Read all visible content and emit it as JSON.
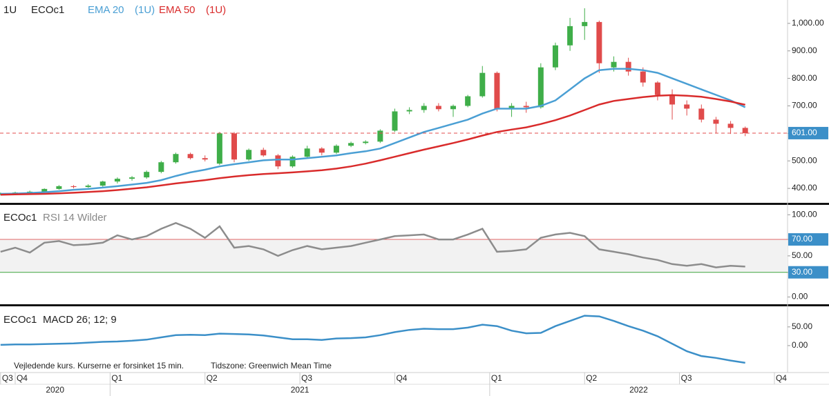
{
  "chart_data": [
    {
      "type": "candlestick",
      "title": "1U",
      "symbol": "ECOc1",
      "x": [
        -2,
        0,
        2,
        4,
        6,
        8,
        10,
        12,
        14,
        16,
        18,
        20,
        22,
        24,
        26,
        28,
        30,
        32,
        34,
        36,
        38,
        40,
        42,
        44,
        46,
        48,
        50,
        52,
        54,
        56,
        58,
        60,
        62,
        64,
        66,
        68,
        70,
        72,
        74,
        76,
        78,
        80,
        82,
        84,
        86,
        88,
        90,
        92,
        94,
        96,
        98,
        100
      ],
      "open": [
        378,
        382,
        385,
        388,
        398,
        408,
        405,
        410,
        425,
        435,
        440,
        460,
        495,
        525,
        510,
        490,
        600,
        505,
        540,
        520,
        480,
        515,
        545,
        530,
        555,
        565,
        570,
        610,
        680,
        685,
        700,
        688,
        700,
        735,
        820,
        690,
        700,
        695,
        840,
        920,
        990,
        1005,
        840,
        860,
        825,
        785,
        740,
        705,
        690,
        650,
        635,
        620
      ],
      "high": [
        385,
        388,
        392,
        400,
        412,
        412,
        415,
        428,
        440,
        445,
        465,
        500,
        530,
        530,
        520,
        605,
        605,
        545,
        548,
        525,
        520,
        555,
        550,
        560,
        570,
        575,
        615,
        690,
        695,
        710,
        710,
        705,
        740,
        845,
        825,
        710,
        715,
        855,
        930,
        1020,
        1055,
        1010,
        880,
        875,
        840,
        790,
        760,
        720,
        705,
        660,
        645,
        625
      ],
      "low": [
        375,
        378,
        380,
        385,
        395,
        400,
        402,
        406,
        418,
        428,
        435,
        455,
        490,
        505,
        498,
        485,
        495,
        500,
        515,
        470,
        475,
        510,
        520,
        525,
        550,
        560,
        565,
        605,
        670,
        675,
        680,
        660,
        695,
        730,
        680,
        660,
        675,
        690,
        830,
        900,
        940,
        820,
        825,
        810,
        770,
        720,
        650,
        665,
        640,
        600,
        598,
        590
      ],
      "close": [
        382,
        385,
        388,
        398,
        408,
        405,
        410,
        425,
        435,
        440,
        460,
        495,
        525,
        510,
        505,
        600,
        505,
        540,
        520,
        480,
        515,
        545,
        530,
        555,
        565,
        570,
        610,
        680,
        685,
        700,
        688,
        700,
        735,
        820,
        690,
        700,
        695,
        840,
        920,
        990,
        1005,
        855,
        860,
        825,
        785,
        740,
        705,
        690,
        650,
        635,
        620,
        601
      ],
      "up_color": "#3fae49",
      "down_color": "#e04b4b",
      "series": [
        {
          "name": "EMA 20",
          "period_label": "(1U)",
          "color": "#4a9fd4",
          "values": [
            380,
            381,
            383,
            386,
            390,
            395,
            398,
            403,
            408,
            414,
            420,
            430,
            445,
            458,
            468,
            480,
            488,
            495,
            502,
            505,
            505,
            510,
            515,
            520,
            528,
            535,
            545,
            565,
            585,
            605,
            620,
            635,
            650,
            672,
            690,
            690,
            690,
            700,
            720,
            760,
            800,
            830,
            835,
            835,
            830,
            820,
            800,
            780,
            760,
            740,
            720,
            695
          ]
        },
        {
          "name": "EMA 50",
          "period_label": "(1U)",
          "color": "#d92b2b",
          "values": [
            377,
            378,
            379,
            380,
            382,
            384,
            387,
            390,
            394,
            399,
            404,
            411,
            418,
            424,
            430,
            437,
            443,
            448,
            452,
            455,
            458,
            462,
            466,
            472,
            480,
            490,
            502,
            515,
            528,
            541,
            553,
            565,
            578,
            592,
            605,
            614,
            622,
            634,
            648,
            665,
            685,
            705,
            718,
            725,
            732,
            737,
            739,
            737,
            733,
            725,
            716,
            704
          ]
        }
      ],
      "ylim": [
        350,
        1085
      ],
      "yticks": [
        {
          "value": 400,
          "label": "400.00"
        },
        {
          "value": 500,
          "label": "500.00"
        },
        {
          "value": 600,
          "label": "600.00"
        },
        {
          "value": 700,
          "label": "700.00"
        },
        {
          "value": 800,
          "label": "800.00"
        },
        {
          "value": 900,
          "label": "900.00"
        },
        {
          "value": 1000,
          "label": "1,000.00"
        }
      ],
      "last_price": {
        "value": 601,
        "label": "601.00"
      },
      "xlim": [
        -2.08,
        105.8
      ],
      "xticks": [
        {
          "value": -2,
          "label": "Q3"
        },
        {
          "value": 0,
          "label": "Q4"
        },
        {
          "value": 13,
          "label": "Q1"
        },
        {
          "value": 26,
          "label": "Q2"
        },
        {
          "value": 39,
          "label": "Q3"
        },
        {
          "value": 52,
          "label": "Q4"
        },
        {
          "value": 65,
          "label": "Q1"
        },
        {
          "value": 78,
          "label": "Q2"
        },
        {
          "value": 91,
          "label": "Q3"
        },
        {
          "value": 104,
          "label": "Q4"
        }
      ],
      "year_breaks": [
        13,
        65
      ],
      "years": [
        "2020",
        "2021",
        "2022"
      ],
      "notes": [
        "Vejledende kurs. Kurserne er forsinket 15 min.",
        "Tidszone: Greenwich Mean Time"
      ]
    },
    {
      "type": "line",
      "symbol": "ECOc1",
      "title": "RSI 14 Wilder",
      "color": "#8c8c8c",
      "values": [
        55,
        60,
        54,
        66,
        68,
        63,
        64,
        66,
        75,
        70,
        74,
        83,
        90,
        83,
        72,
        86,
        60,
        62,
        58,
        50,
        57,
        62,
        58,
        60,
        62,
        66,
        70,
        74,
        75,
        76,
        70,
        70,
        76,
        83,
        55,
        56,
        58,
        72,
        76,
        78,
        74,
        58,
        55,
        52,
        48,
        45,
        40,
        38,
        40,
        36,
        38,
        37
      ],
      "ylim": [
        -8,
        112
      ],
      "yticks": [
        {
          "value": 100,
          "label": "100.00"
        },
        {
          "value": 70,
          "label": "70.00"
        },
        {
          "value": 50,
          "label": "50.00"
        },
        {
          "value": 30,
          "label": "30.00"
        },
        {
          "value": 0,
          "label": "0.00"
        }
      ],
      "overbought": 70,
      "oversold": 30,
      "overbought_color": "#e06666",
      "oversold_color": "#3aa33a"
    },
    {
      "type": "line",
      "symbol": "ECOc1",
      "title": "MACD 26; 12; 9",
      "color": "#3b8fc8",
      "values": [
        2,
        3,
        3,
        4,
        5,
        6,
        8,
        10,
        11,
        13,
        16,
        22,
        28,
        29,
        28,
        32,
        31,
        30,
        27,
        22,
        17,
        17,
        15,
        19,
        20,
        22,
        28,
        36,
        42,
        45,
        44,
        44,
        48,
        56,
        52,
        40,
        33,
        34,
        52,
        66,
        80,
        78,
        66,
        52,
        40,
        25,
        5,
        -15,
        -28,
        -33,
        -40,
        -46
      ],
      "ylim": [
        -72,
        105
      ],
      "yticks": [
        {
          "value": 50,
          "label": "50.00"
        },
        {
          "value": 0,
          "label": "0.00"
        }
      ]
    }
  ]
}
